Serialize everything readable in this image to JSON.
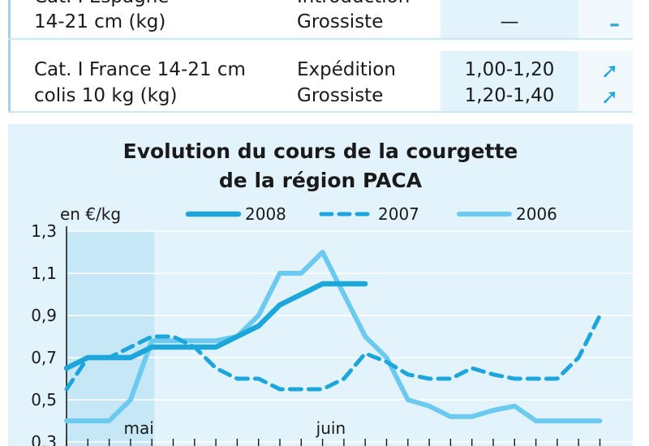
{
  "table": {
    "rows": [
      {
        "product_lines": [
          "Cat. I Espagne",
          "14-21 cm (kg)"
        ],
        "stages": [
          "Introduction",
          "Grossiste"
        ],
        "prices": [
          "",
          "—"
        ],
        "trends": [
          "–",
          "–"
        ]
      },
      {
        "product_lines": [
          "Cat. I France 14-21 cm",
          "colis 10 kg (kg)"
        ],
        "stages": [
          "Expédition",
          "Grossiste"
        ],
        "prices": [
          "1,00-1,20",
          "1,20-1,40"
        ],
        "trends": [
          "➚",
          "➚"
        ]
      }
    ]
  },
  "chart_data": {
    "type": "line",
    "title_lines": [
      "Evolution du cours de la courgette",
      "de la région PACA"
    ],
    "ylabel": "en €/kg",
    "ylim": [
      0.3,
      1.3
    ],
    "ytick_labels": [
      "1,3",
      "1,1",
      "0,9",
      "0,7",
      "0,5",
      "0,3"
    ],
    "yticks": [
      1.3,
      1.1,
      0.9,
      0.7,
      0.5,
      0.3
    ],
    "month_labels": [
      {
        "label": "mai",
        "week": 4
      },
      {
        "label": "juin",
        "week": 13
      }
    ],
    "week_count": 26,
    "highlight_weeks": [
      0,
      4
    ],
    "series": [
      {
        "name": "2008",
        "style": "solid-thick",
        "color": "#1da6dc",
        "x": [
          0,
          1,
          2,
          3,
          4,
          5,
          6,
          7,
          8,
          9,
          10,
          11,
          12,
          13,
          14
        ],
        "values": [
          0.65,
          0.7,
          0.7,
          0.7,
          0.75,
          0.75,
          0.75,
          0.75,
          0.8,
          0.85,
          0.95,
          1.0,
          1.05,
          1.05,
          1.05
        ]
      },
      {
        "name": "2007",
        "style": "dashed",
        "color": "#1da6dc",
        "x": [
          0,
          1,
          2,
          3,
          4,
          5,
          6,
          7,
          8,
          9,
          10,
          11,
          12,
          13,
          14,
          15,
          16,
          17,
          18,
          19,
          20,
          21,
          22,
          23,
          24,
          25
        ],
        "values": [
          0.55,
          0.7,
          0.7,
          0.75,
          0.8,
          0.8,
          0.75,
          0.65,
          0.6,
          0.6,
          0.55,
          0.55,
          0.55,
          0.6,
          0.72,
          0.68,
          0.62,
          0.6,
          0.6,
          0.65,
          0.62,
          0.6,
          0.6,
          0.6,
          0.7,
          0.9
        ]
      },
      {
        "name": "2006",
        "style": "solid-light",
        "color": "#6ccaf0",
        "x": [
          0,
          1,
          2,
          3,
          4,
          5,
          6,
          7,
          8,
          9,
          10,
          11,
          12,
          13,
          14,
          15,
          16,
          17,
          18,
          19,
          20,
          21,
          22,
          23,
          24,
          25
        ],
        "values": [
          0.4,
          0.4,
          0.4,
          0.5,
          0.78,
          0.78,
          0.78,
          0.78,
          0.8,
          0.9,
          1.1,
          1.1,
          1.2,
          1.0,
          0.8,
          0.7,
          0.5,
          0.47,
          0.42,
          0.42,
          0.45,
          0.47,
          0.4,
          0.4,
          0.4,
          0.4
        ]
      }
    ]
  }
}
